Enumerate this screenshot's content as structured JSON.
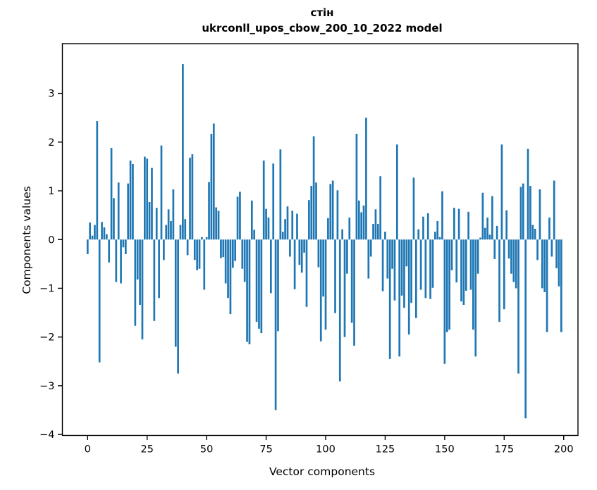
{
  "title": {
    "line1": "стін",
    "line2": "ukrconll_upos_cbow_200_10_2022 model"
  },
  "chart_data": {
    "type": "bar",
    "title": "стін",
    "subtitle": "ukrconll_upos_cbow_200_10_2022 model",
    "xlabel": "Vector components",
    "ylabel": "Components values",
    "x_start": 0,
    "values": [
      -0.3,
      0.35,
      0.08,
      0.3,
      2.43,
      -2.52,
      0.36,
      0.25,
      0.11,
      -0.47,
      1.88,
      0.85,
      -0.87,
      1.17,
      -0.9,
      -0.16,
      -0.3,
      1.15,
      1.62,
      1.55,
      -1.77,
      -0.82,
      -1.34,
      -2.05,
      1.7,
      1.66,
      0.77,
      1.47,
      -1.67,
      0.65,
      -1.2,
      1.93,
      -0.42,
      0.3,
      0.62,
      0.38,
      1.03,
      -2.2,
      -2.75,
      0.3,
      3.6,
      0.42,
      -0.32,
      1.68,
      1.75,
      -0.42,
      -0.63,
      -0.6,
      0.05,
      -1.03,
      0.05,
      1.18,
      2.17,
      2.38,
      0.66,
      0.59,
      -0.38,
      -0.36,
      -0.9,
      -1.2,
      -1.53,
      -0.58,
      -0.44,
      0.88,
      0.98,
      -0.6,
      -0.87,
      -2.1,
      -2.15,
      0.8,
      0.2,
      -1.69,
      -1.83,
      -1.92,
      1.62,
      0.63,
      0.45,
      -1.1,
      1.56,
      -3.5,
      -1.88,
      1.85,
      0.16,
      0.42,
      0.68,
      -0.35,
      0.59,
      -1.02,
      0.53,
      -0.52,
      -0.68,
      -0.27,
      -1.38,
      0.81,
      1.1,
      2.12,
      1.17,
      -0.57,
      -2.09,
      -1.17,
      -1.85,
      0.44,
      1.14,
      1.21,
      -1.51,
      1.01,
      -2.91,
      0.21,
      -2.0,
      -0.7,
      0.45,
      -1.71,
      -2.18,
      2.17,
      0.8,
      0.56,
      0.7,
      2.5,
      -0.8,
      -0.35,
      0.32,
      0.62,
      0.32,
      1.3,
      -1.06,
      0.16,
      -0.8,
      -2.45,
      -0.6,
      -1.25,
      1.95,
      -2.4,
      -1.15,
      -1.4,
      -0.55,
      -1.95,
      -1.3,
      1.27,
      -1.61,
      0.21,
      -1.03,
      0.47,
      -1.2,
      0.54,
      -1.22,
      -0.99,
      0.16,
      0.38,
      0.05,
      0.99,
      -2.55,
      -1.9,
      -1.85,
      -0.63,
      0.65,
      -0.88,
      0.63,
      -1.27,
      -1.34,
      -1.05,
      0.57,
      -1.03,
      -1.85,
      -2.4,
      -0.7,
      0.04,
      0.96,
      0.24,
      0.45,
      0.1,
      0.89,
      -0.4,
      0.28,
      -1.69,
      1.95,
      -1.43,
      0.6,
      -0.39,
      -0.7,
      -0.87,
      -1.0,
      -2.75,
      1.08,
      1.15,
      -3.67,
      1.86,
      1.1,
      0.3,
      0.22,
      -0.42,
      1.03,
      -1.0,
      -1.08,
      -1.9,
      0.45,
      -0.35,
      1.21,
      -0.59,
      -0.96,
      -1.9
    ],
    "bar_color": "#1f77b4",
    "axis_color": "#000000",
    "xlim": [
      -10.6,
      206.0
    ],
    "ylim": [
      -4.02,
      4.02
    ],
    "x_ticks": [
      0,
      25,
      50,
      75,
      100,
      125,
      150,
      175,
      200
    ],
    "y_ticks": [
      -4,
      -3,
      -2,
      -1,
      0,
      1,
      2,
      3
    ],
    "grid": false,
    "legend": null
  }
}
